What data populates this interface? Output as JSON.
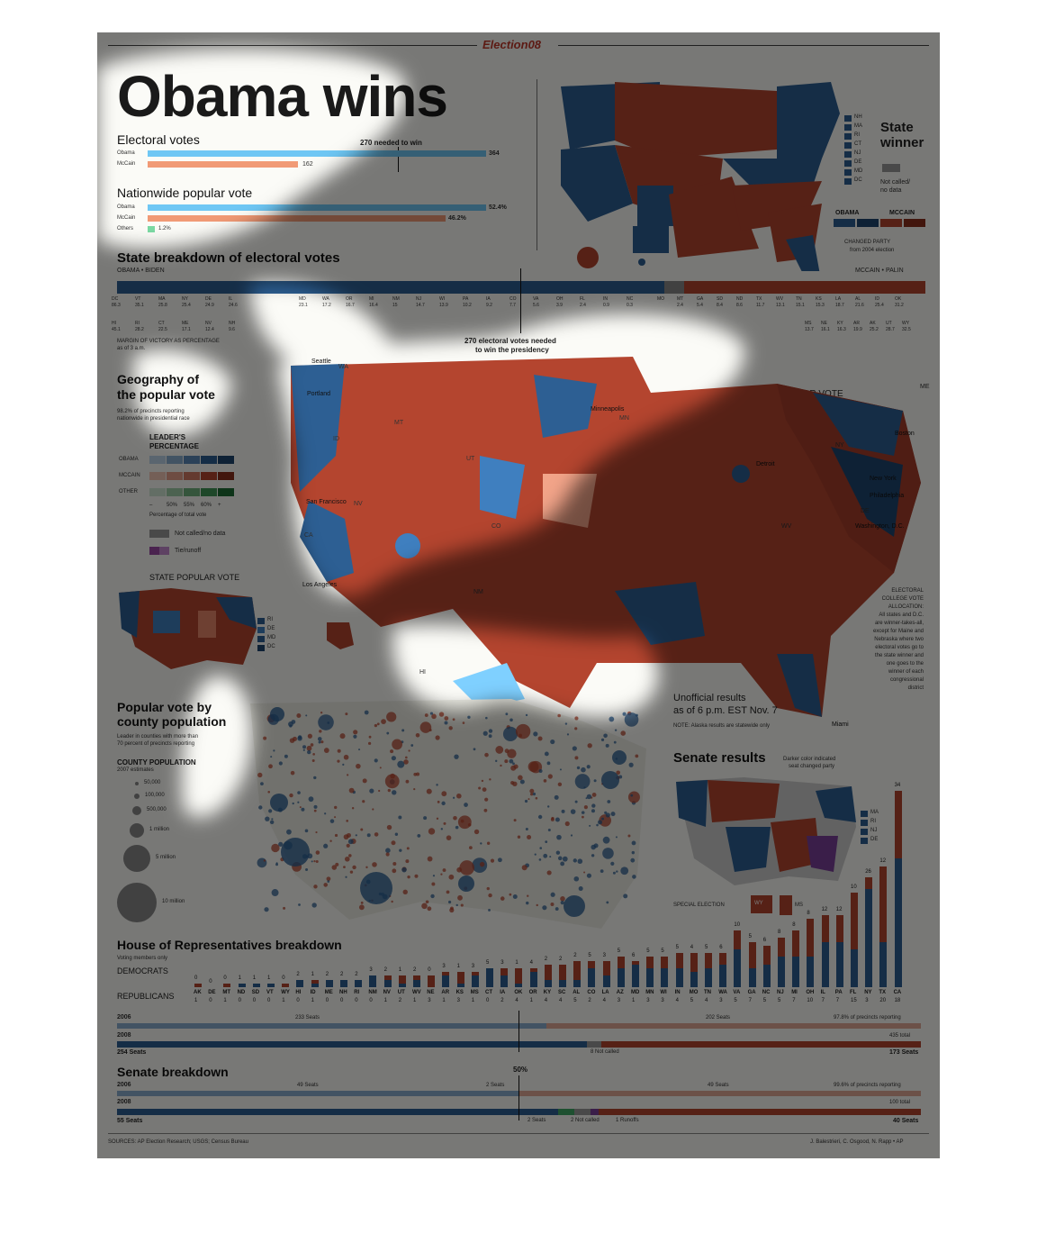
{
  "masthead": "Election08",
  "headline": "Obama wins",
  "electoral": {
    "title": "Electoral votes",
    "needed": "270 needed to win",
    "obama_label": "Obama",
    "obama_value": "364",
    "mccain_label": "McCain",
    "mccain_value": "162"
  },
  "popular": {
    "title": "Nationwide popular vote",
    "obama_label": "Obama",
    "obama_value": "52.4%",
    "mccain_label": "McCain",
    "mccain_value": "46.2%",
    "others_label": "Others",
    "others_value": "1.2%"
  },
  "state_winner": {
    "title_1": "State",
    "title_2": "winner",
    "not_called_1": "Not called/",
    "not_called_2": "no data",
    "obama": "OBAMA",
    "mccain": "MCCAIN",
    "changed_1": "CHANGED PARTY",
    "changed_2": "from 2004 election",
    "small_states": [
      "NH",
      "MA",
      "RI",
      "CT",
      "NJ",
      "DE",
      "MD",
      "DC"
    ],
    "states_labels": [
      "WA",
      "OR",
      "ID",
      "MT",
      "ND",
      "WY",
      "SD",
      "MN",
      "WI",
      "MI",
      "NV",
      "UT",
      "CO",
      "NE",
      "IA",
      "IL",
      "IN",
      "OH",
      "PA",
      "NY",
      "VT",
      "ME",
      "CA",
      "KS",
      "MO",
      "KY",
      "WV",
      "VA",
      "AZ",
      "NM",
      "OK",
      "AR",
      "TN",
      "NC",
      "SC",
      "TX",
      "LA",
      "MS",
      "AL",
      "GA",
      "FL",
      "AK",
      "HI"
    ]
  },
  "breakdown": {
    "title": "State breakdown of electoral votes",
    "obama_biden": "OBAMA • BIDEN",
    "mccain_palin": "MCCAIN • PALIN",
    "margin_note_1": "MARGIN OF VICTORY AS PERCENTAGE",
    "margin_note_2": "as of 3 a.m.",
    "needed_1": "270 electoral votes needed",
    "needed_2": "to win the presidency",
    "obama_top": [
      "DC",
      "VT",
      "MA",
      "NY",
      "DE",
      "IL",
      "",
      "",
      "MD",
      "WA",
      "OR",
      "MI",
      "NM",
      "NJ",
      "WI",
      "PA",
      "IA",
      "CO",
      "VA",
      "OH",
      "FL",
      "IN",
      "NC"
    ],
    "obama_top_vals": [
      "86.3",
      "35.1",
      "25.8",
      "25.4",
      "24.9",
      "24.6",
      "",
      "",
      "23.1",
      "17.2",
      "16.7",
      "16.4",
      "15",
      "14.7",
      "13.9",
      "10.2",
      "9.2",
      "7.7",
      "5.6",
      "3.9",
      "2.4",
      "0.9",
      "0.3"
    ],
    "obama_bottom": [
      "HI",
      "RI",
      "CT",
      "ME",
      "NV",
      "NH"
    ],
    "obama_bottom_vals": [
      "45.1",
      "28.2",
      "22.5",
      "17.1",
      "12.4",
      "9.6"
    ],
    "mccain_top": [
      "MO",
      "MT",
      "GA",
      "SD",
      "ND",
      "TX",
      "WV",
      "TN",
      "KS",
      "LA",
      "AL",
      "ID",
      "OK"
    ],
    "mccain_top_vals": [
      "",
      "2.4",
      "5.4",
      "8.4",
      "8.6",
      "11.7",
      "13.1",
      "15.1",
      "15.3",
      "18.7",
      "21.6",
      "25.4",
      "31.2"
    ],
    "mccain_bottom": [
      "MS",
      "NE",
      "KY",
      "AR",
      "AK",
      "UT",
      "WY"
    ],
    "mccain_bottom_vals": [
      "13.7",
      "16.1",
      "16.3",
      "19.9",
      "25.2",
      "28.7",
      "32.5"
    ]
  },
  "geography": {
    "title_1": "Geography of",
    "title_2": "the popular vote",
    "note_1": "98.2% of precincts reporting",
    "note_2": "nationwide in presidential race",
    "county_title": "COUNTY POPULAR VOTE",
    "leader_1": "LEADER'S",
    "leader_2": "PERCENTAGE",
    "rows": [
      "OBAMA",
      "MCCAIN",
      "OTHER"
    ],
    "scale": [
      "–",
      "50%",
      "55%",
      "60%",
      "+"
    ],
    "scale_note": "Percentage of total vote",
    "not_called": "Not called/no data",
    "tie": "Tie/runoff",
    "state_popular": "STATE POPULAR VOTE",
    "state_small": [
      "RI",
      "DE",
      "MD",
      "DC"
    ],
    "cities": [
      "Seattle",
      "Portland",
      "San Francisco",
      "Los Angeles",
      "Minneapolis",
      "Detroit",
      "New York",
      "Boston",
      "Philadelphia",
      "Washington, D.C.",
      "Miami",
      "Dallas"
    ],
    "state_tags": [
      "WA",
      "MT",
      "ID",
      "NV",
      "CA",
      "UT",
      "CO",
      "MN",
      "NM",
      "NY",
      "DE",
      "WV",
      "ME",
      "HI"
    ],
    "alloc": [
      "ELECTORAL",
      "COLLEGE VOTE",
      "ALLOCATION:",
      "All states and D.C.",
      "are winner-takes-all,",
      "except for Maine and",
      "Nebraska where two",
      "electoral votes go to",
      "the state winner and",
      "one goes to the",
      "winner of each",
      "congressional",
      "district"
    ],
    "unofficial_1": "Unofficial results",
    "unofficial_2": "as of 6 p.m. EST Nov. 7",
    "alaska_note": "NOTE: Alaska results are statewide only"
  },
  "county_pop": {
    "title_1": "Popular vote by",
    "title_2": "county population",
    "note_1": "Leader in counties with more than",
    "note_2": "70 percent of precincts reporting",
    "legend_title": "COUNTY POPULATION",
    "legend_sub": "2007 estimates",
    "sizes": [
      "50,000",
      "100,000",
      "500,000",
      "1 million",
      "5 million",
      "10 million"
    ]
  },
  "senate_results": {
    "title": "Senate results",
    "note_1": "Darker color indicated",
    "note_2": "seat changed party",
    "small": [
      "MA",
      "RI",
      "NJ",
      "DE"
    ],
    "special": "SPECIAL ELECTION",
    "special_states": [
      "WY",
      "MS"
    ]
  },
  "house": {
    "title": "House of Representatives breakdown",
    "sub": "Voting members only",
    "dem_label": "DEMOCRATS",
    "rep_label": "REPUBLICANS",
    "states": [
      "AK",
      "DE",
      "MT",
      "ND",
      "SD",
      "VT",
      "WY",
      "HI",
      "ID",
      "ME",
      "NH",
      "RI",
      "NM",
      "NV",
      "UT",
      "WV",
      "NE",
      "AR",
      "KS",
      "MS",
      "CT",
      "IA",
      "OK",
      "OR",
      "KY",
      "SC",
      "AL",
      "CO",
      "LA",
      "AZ",
      "MD",
      "MN",
      "WI",
      "IN",
      "MO",
      "TN",
      "WA",
      "VA",
      "GA",
      "NC",
      "NJ",
      "MI",
      "OH",
      "IL",
      "PA",
      "FL",
      "NY",
      "TX",
      "CA"
    ],
    "dem": [
      0,
      0,
      0,
      1,
      1,
      1,
      0,
      2,
      1,
      2,
      2,
      2,
      3,
      2,
      1,
      2,
      0,
      3,
      1,
      3,
      5,
      3,
      1,
      4,
      2,
      2,
      2,
      5,
      3,
      5,
      6,
      5,
      5,
      5,
      4,
      5,
      6,
      10,
      5,
      6,
      8,
      8,
      8,
      12,
      12,
      10,
      26,
      12,
      34
    ],
    "rep": [
      1,
      0,
      1,
      0,
      0,
      0,
      1,
      0,
      1,
      0,
      0,
      0,
      0,
      1,
      2,
      1,
      3,
      1,
      3,
      1,
      0,
      2,
      4,
      1,
      4,
      4,
      5,
      2,
      4,
      3,
      1,
      3,
      3,
      4,
      5,
      4,
      3,
      5,
      7,
      5,
      5,
      7,
      10,
      7,
      7,
      15,
      3,
      20,
      18
    ],
    "y2006": "2006",
    "y2008": "2008",
    "seats_2006_dem": "233 Seats",
    "seats_2006_rep": "202 Seats",
    "reporting": "97.8% of precincts reporting",
    "total": "435 total",
    "dem_2008": "254 Seats",
    "not_called": "8 Not called",
    "rep_2008": "173 Seats"
  },
  "senate": {
    "title": "Senate breakdown",
    "fifty": "50%",
    "y2006": "2006",
    "y2008": "2008",
    "dem_2006": "49 Seats",
    "ind_2006": "2 Seats",
    "rep_2006": "49 Seats",
    "reporting": "99.6% of precincts reporting",
    "total": "100 total",
    "dem_2008": "55 Seats",
    "ind_2008": "2 Seats",
    "not_called": "2 Not called",
    "runoffs": "1 Runoffs",
    "rep_2008": "40 Seats"
  },
  "footer": {
    "sources": "SOURCES: AP Election Research; USGS; Census Bureau",
    "credit": "J. Balestrieri, C. Osgood, N. Rapp • AP"
  },
  "colors": {
    "obama": "#2d5f93",
    "obama_light": "#7fd0ff",
    "mccain": "#b4452f",
    "mccain_light": "#f5a07a",
    "other": "#7bd9a3"
  }
}
